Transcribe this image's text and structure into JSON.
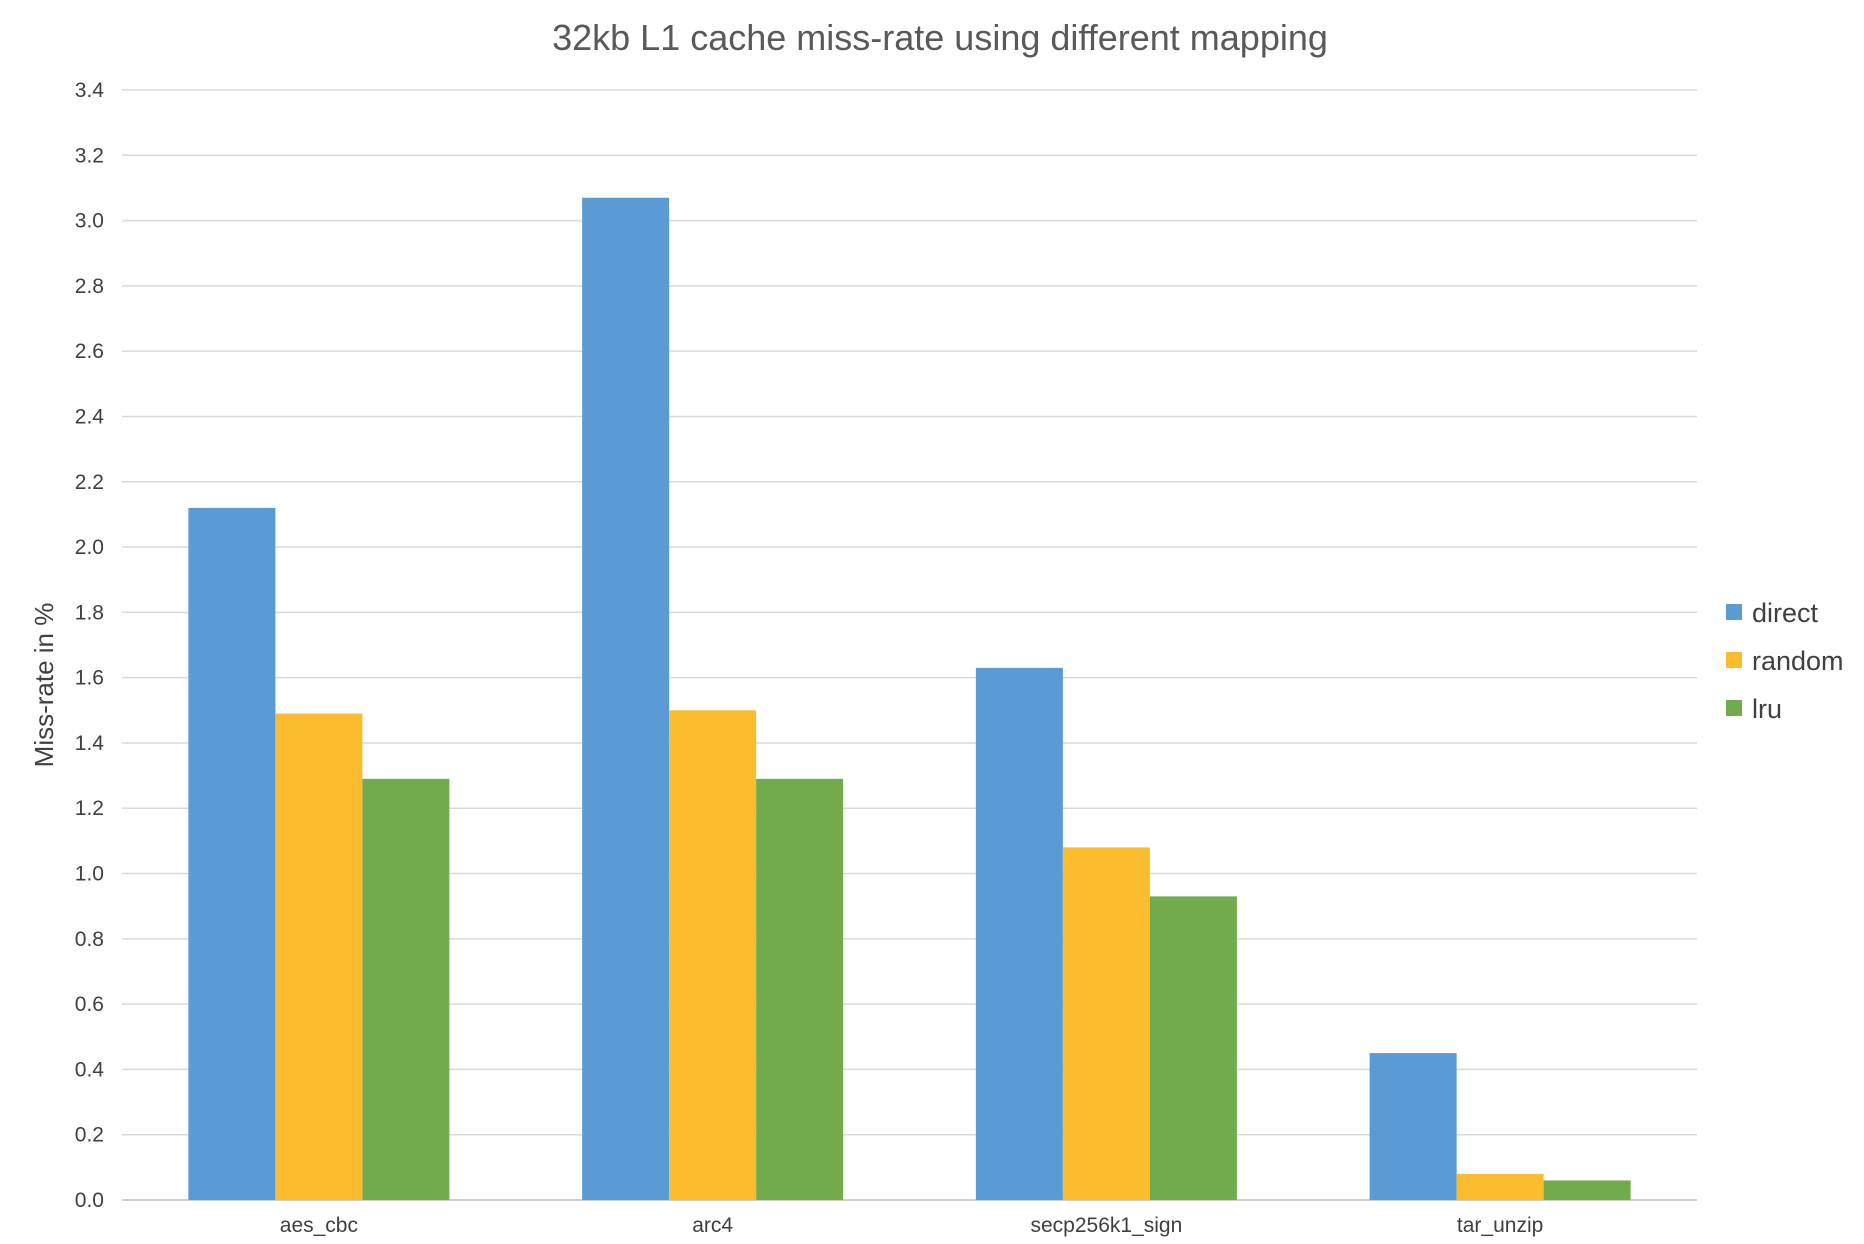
{
  "chart_data": {
    "type": "bar",
    "title": "32kb L1 cache miss-rate using different mapping",
    "xlabel": "",
    "ylabel": "Miss-rate in %",
    "ylim": [
      0,
      3.4
    ],
    "ytick_step": 0.2,
    "grid": true,
    "legend_position": "right",
    "categories": [
      "aes_cbc",
      "arc4",
      "secp256k1_sign",
      "tar_unzip"
    ],
    "series": [
      {
        "name": "direct",
        "color": "#5b9bd5",
        "values": [
          2.12,
          3.07,
          1.63,
          0.45
        ]
      },
      {
        "name": "random",
        "color": "#fbbc2d",
        "values": [
          1.49,
          1.5,
          1.08,
          0.08
        ]
      },
      {
        "name": "lru",
        "color": "#71ab4b",
        "values": [
          1.29,
          1.29,
          0.93,
          0.06
        ]
      }
    ]
  }
}
